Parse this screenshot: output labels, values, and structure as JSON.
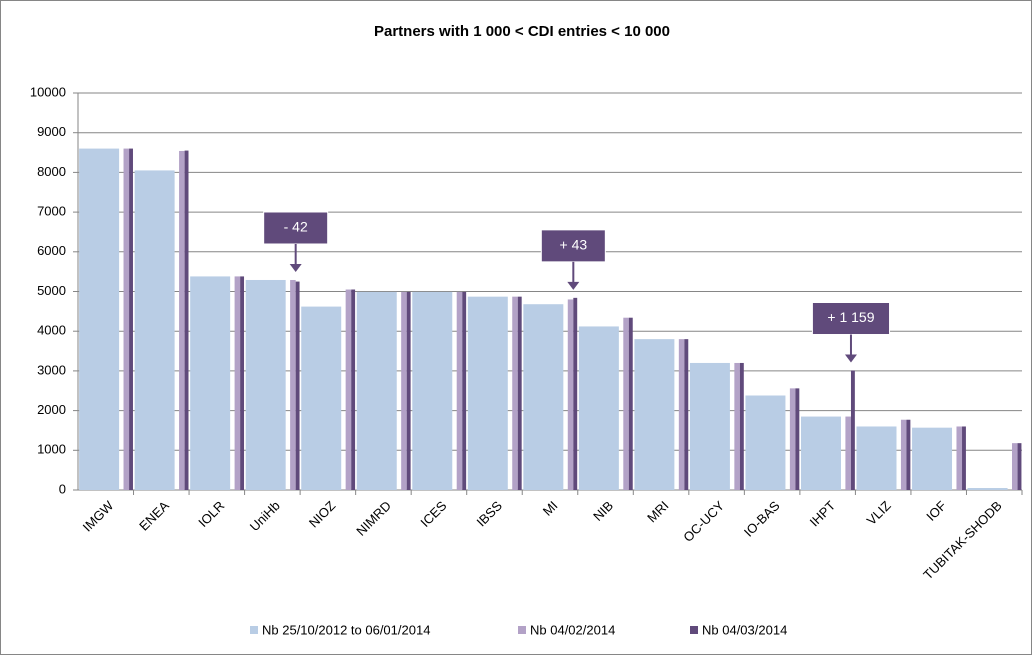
{
  "chart_data": {
    "type": "bar",
    "title": "Partners with 1 000 < CDI entries < 10 000",
    "categories": [
      "IMGW",
      "ENEA",
      "IOLR",
      "UniHb",
      "NIOZ",
      "NIMRD",
      "ICES",
      "IBSS",
      "MI",
      "NIB",
      "MRI",
      "OC-UCY",
      "IO-BAS",
      "IHPT",
      "VLIZ",
      "IOF",
      "TUBITAK-SHODB"
    ],
    "series": [
      {
        "name": "Nb 25/10/2012 to 06/01/2014",
        "color": "#b9cde5",
        "values": [
          8600,
          8050,
          5380,
          5290,
          4620,
          4990,
          4990,
          4870,
          4680,
          4120,
          3800,
          3200,
          2380,
          1850,
          1600,
          1570,
          50
        ]
      },
      {
        "name": "Nb 04/02/2014",
        "color": "#b3a2c7",
        "values": [
          8600,
          8540,
          5380,
          5290,
          5050,
          4990,
          4990,
          4870,
          4800,
          4340,
          3800,
          3200,
          2560,
          1850,
          1770,
          1600,
          1180
        ]
      },
      {
        "name": "Nb 04/03/2014",
        "color": "#604a7b",
        "values": [
          8600,
          8550,
          5380,
          5250,
          5050,
          4990,
          4990,
          4870,
          4840,
          4340,
          3800,
          3200,
          2560,
          3010,
          1770,
          1600,
          1180
        ]
      }
    ],
    "annotations": [
      {
        "text": "- 42",
        "category": "UniHb"
      },
      {
        "text": "+ 43",
        "category": "MI"
      },
      {
        "text": "+ 1 159",
        "category": "IHPT"
      }
    ],
    "ylim": [
      0,
      10000
    ],
    "yticks": [
      0,
      1000,
      2000,
      3000,
      4000,
      5000,
      6000,
      7000,
      8000,
      9000,
      10000
    ],
    "grid": true,
    "legend": "bottom"
  }
}
